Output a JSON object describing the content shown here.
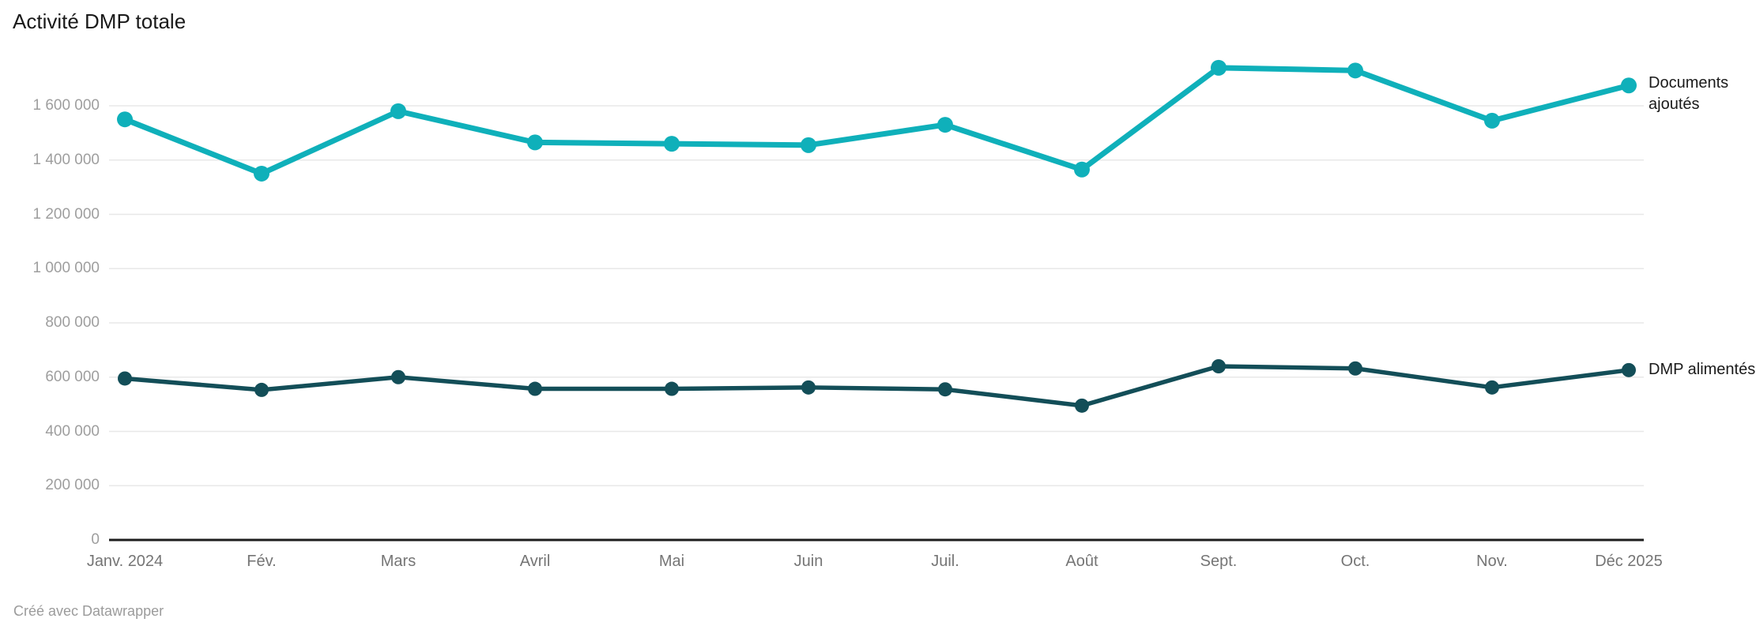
{
  "title": "Activité DMP totale",
  "footer": "Créé avec Datawrapper",
  "legend": {
    "documents_ajoutes": "Documents ajoutés",
    "dmp_alimentes": "DMP alimentés"
  },
  "colors": {
    "documents_ajoutes_line": "#0fb0ba",
    "dmp_alimentes_line": "#134e58",
    "gridline": "#e8e8e8",
    "baseline": "#1d1d1d",
    "y_tick_text": "#9e9e9e",
    "x_tick_text": "#757575",
    "title_text": "#1a1a1a",
    "attribution_text": "#9b9b9b",
    "background": "#ffffff"
  },
  "chart_data": {
    "type": "line",
    "title": "Activité DMP totale",
    "categories": [
      "Janv. 2024",
      "Fév.",
      "Mars",
      "Avril",
      "Mai",
      "Juin",
      "Juil.",
      "Août",
      "Sept.",
      "Oct.",
      "Nov.",
      "Déc 2025"
    ],
    "series": [
      {
        "name": "Documents ajoutés",
        "color": "#0fb0ba",
        "line_width": 7,
        "point_radius": 10,
        "values": [
          1550000,
          1350000,
          1580000,
          1465000,
          1460000,
          1455000,
          1530000,
          1365000,
          1740000,
          1730000,
          1545000,
          1675000
        ]
      },
      {
        "name": "DMP alimentés",
        "color": "#134e58",
        "line_width": 5.5,
        "point_radius": 9,
        "values": [
          595000,
          553000,
          600000,
          557000,
          557000,
          562000,
          555000,
          495000,
          640000,
          632000,
          562000,
          626000
        ]
      }
    ],
    "y_tick_values": [
      0,
      200000,
      400000,
      600000,
      800000,
      1000000,
      1200000,
      1400000,
      1600000
    ],
    "y_tick_labels": [
      "0",
      "200 000",
      "400 000",
      "600 000",
      "800 000",
      "1 000 000",
      "1 200 000",
      "1 400 000",
      "1 600 000"
    ],
    "ylim": [
      0,
      1800000
    ],
    "grid": "horizontal",
    "legend_position": "right-of-last-points",
    "attribution": "Créé avec Datawrapper"
  }
}
